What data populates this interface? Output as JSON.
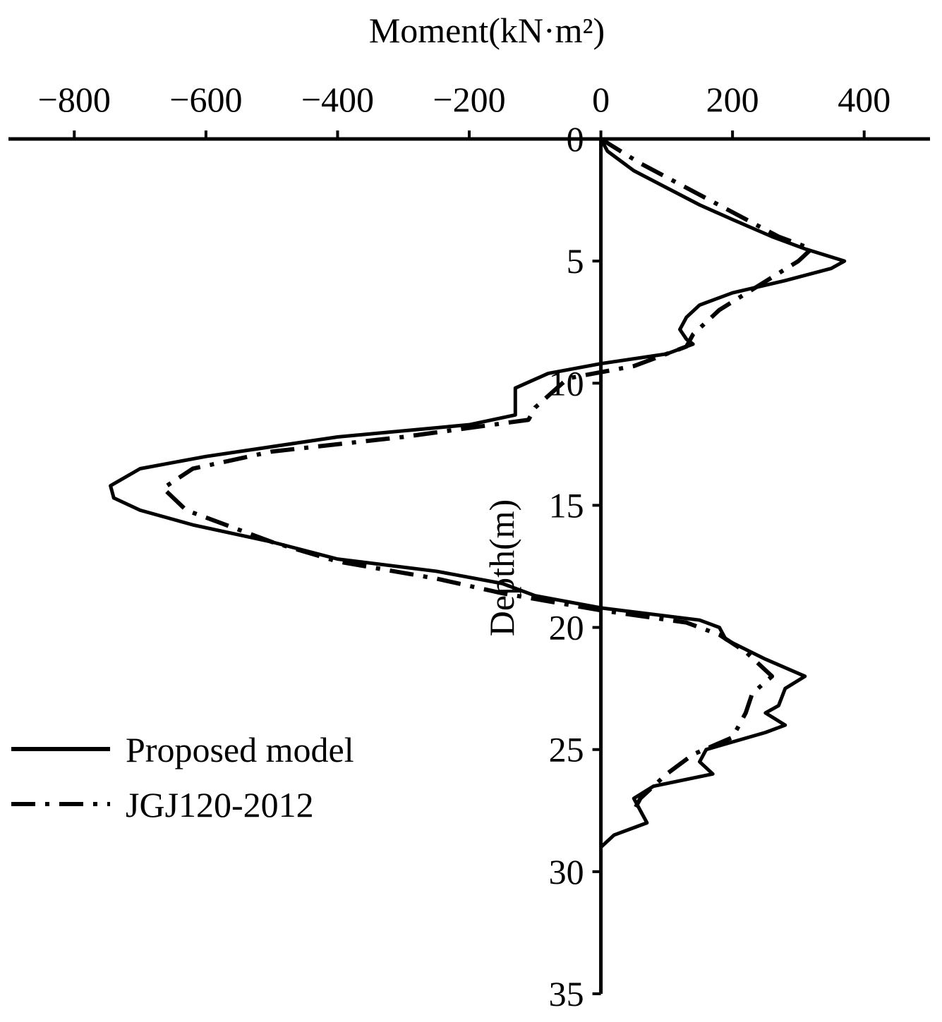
{
  "chart_data": {
    "type": "line",
    "xlabel": "Moment(kN·m²)",
    "ylabel": "Depth(m)",
    "xlim": [
      -900,
      500
    ],
    "xticks": [
      {
        "value": -800,
        "label": "−800"
      },
      {
        "value": -600,
        "label": "−600"
      },
      {
        "value": -400,
        "label": "−400"
      },
      {
        "value": -200,
        "label": "−200"
      },
      0,
      200,
      400
    ],
    "ylim": [
      0,
      35
    ],
    "yticks": [
      0,
      5,
      10,
      15,
      20,
      25,
      30,
      35
    ],
    "y_inverted": true,
    "legend": "lower-left",
    "series": [
      {
        "name": "Proposed model",
        "color": "#000000",
        "style": "solid",
        "x": [
          0,
          10,
          50,
          100,
          150,
          200,
          260,
          310,
          370,
          350,
          280,
          200,
          150,
          130,
          120,
          130,
          140,
          100,
          0,
          -80,
          -130,
          -130,
          -130,
          -200,
          -400,
          -600,
          -700,
          -745,
          -740,
          -700,
          -620,
          -500,
          -400,
          -250,
          -150,
          -100,
          0,
          150,
          180,
          190,
          250,
          310,
          280,
          270,
          250,
          280,
          250,
          160,
          150,
          170,
          80,
          50,
          60,
          70,
          20,
          0
        ],
        "y": [
          0,
          0.5,
          1.3,
          2,
          2.7,
          3.3,
          4,
          4.5,
          5,
          5.3,
          5.8,
          6.3,
          6.8,
          7.3,
          7.8,
          8.2,
          8.4,
          8.8,
          9.2,
          9.6,
          10.2,
          10.8,
          11.3,
          11.7,
          12.2,
          13,
          13.5,
          14.2,
          14.7,
          15.2,
          15.8,
          16.5,
          17.2,
          17.7,
          18.2,
          18.7,
          19.2,
          19.7,
          20,
          20.5,
          21.3,
          22,
          22.5,
          23.2,
          23.5,
          24,
          24.3,
          25,
          25.5,
          26,
          26.5,
          27,
          27.5,
          28,
          28.5,
          29
        ]
      },
      {
        "name": "JGJ120-2012",
        "color": "#000000",
        "style": "dashdot",
        "x": [
          0,
          60,
          130,
          200,
          270,
          320,
          300,
          240,
          180,
          140,
          130,
          50,
          -50,
          -100,
          -110,
          -300,
          -500,
          -620,
          -665,
          -630,
          -500,
          -400,
          -250,
          -150,
          0,
          130,
          180,
          220,
          260,
          230,
          220,
          200,
          140,
          100,
          60,
          50
        ],
        "y": [
          0,
          1,
          2,
          3,
          4,
          4.5,
          5,
          6,
          7,
          8,
          8.5,
          9.3,
          9.8,
          11,
          11.5,
          12.2,
          12.8,
          13.5,
          14.3,
          15.2,
          16.5,
          17.3,
          18,
          18.6,
          19.3,
          19.8,
          20.3,
          21,
          22,
          22.7,
          23.5,
          24.5,
          25.2,
          26,
          27,
          27.5
        ]
      }
    ]
  }
}
